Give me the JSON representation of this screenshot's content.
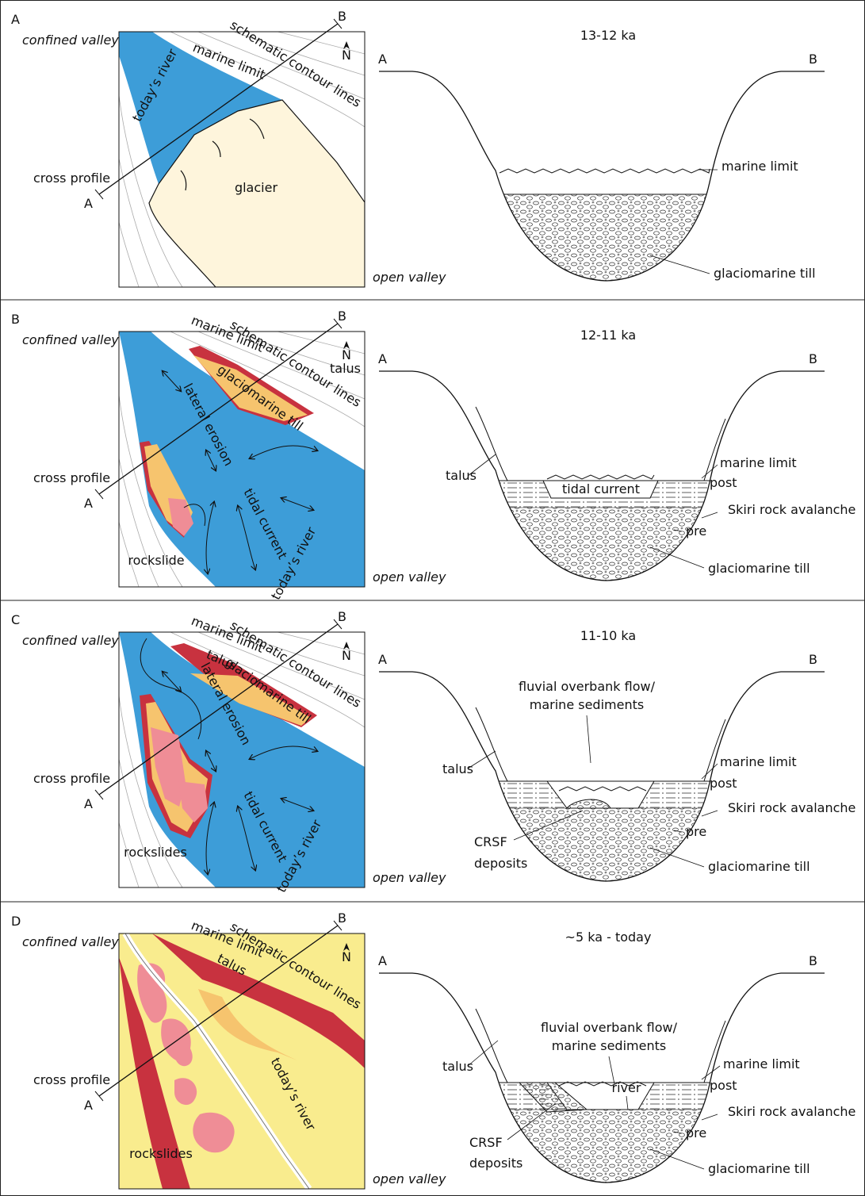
{
  "panels": [
    {
      "letter": "A",
      "title": "13-12 ka",
      "map": {
        "confined": "confined valley",
        "open": "open valley",
        "profile": "cross profile",
        "end_a": "A",
        "end_b": "B",
        "north": "N",
        "labels": [
          "marine limit",
          "schematic contour lines",
          "today’s river",
          "glacier"
        ]
      },
      "section": {
        "end_a": "A",
        "end_b": "B",
        "labels": [
          "marine limit",
          "glaciomarine till"
        ]
      }
    },
    {
      "letter": "B",
      "title": "12-11 ka",
      "map": {
        "confined": "confined valley",
        "open": "open valley",
        "profile": "cross profile",
        "end_a": "A",
        "end_b": "B",
        "north": "N",
        "labels": [
          "marine limit",
          "schematic contour lines",
          "talus",
          "glaciomarine till",
          "lateral erosion",
          "tidal current",
          "today’s river",
          "rockslide"
        ]
      },
      "section": {
        "end_a": "A",
        "end_b": "B",
        "labels": [
          "talus",
          "tidal current",
          "marine limit",
          "post",
          "Skiri rock avalanche",
          "pre",
          "glaciomarine till"
        ]
      }
    },
    {
      "letter": "C",
      "title": "11-10 ka",
      "map": {
        "confined": "confined valley",
        "open": "open valley",
        "profile": "cross profile",
        "end_a": "A",
        "end_b": "B",
        "north": "N",
        "labels": [
          "marine limit",
          "schematic contour lines",
          "talus",
          "glaciomarine till",
          "lateral erosion",
          "tidal current",
          "today’s river",
          "rockslides"
        ]
      },
      "section": {
        "end_a": "A",
        "end_b": "B",
        "labels": [
          "fluvial overbank flow/",
          "marine sediments",
          "talus",
          "marine limit",
          "post",
          "Skiri rock avalanche",
          "pre",
          "CRSF",
          "deposits",
          "glaciomarine till"
        ]
      }
    },
    {
      "letter": "D",
      "title": "~5 ka - today",
      "map": {
        "confined": "confined valley",
        "open": "open valley",
        "profile": "cross profile",
        "end_a": "A",
        "end_b": "B",
        "north": "N",
        "labels": [
          "marine limit",
          "schematic contour lines",
          "talus",
          "today’s river",
          "rockslides"
        ]
      },
      "section": {
        "end_a": "A",
        "end_b": "B",
        "labels": [
          "fluvial overbank flow/",
          "marine sediments",
          "talus",
          "river",
          "marine limit",
          "post",
          "Skiri rock avalanche",
          "pre",
          "CRSF",
          "deposits",
          "glaciomarine till"
        ]
      }
    }
  ]
}
